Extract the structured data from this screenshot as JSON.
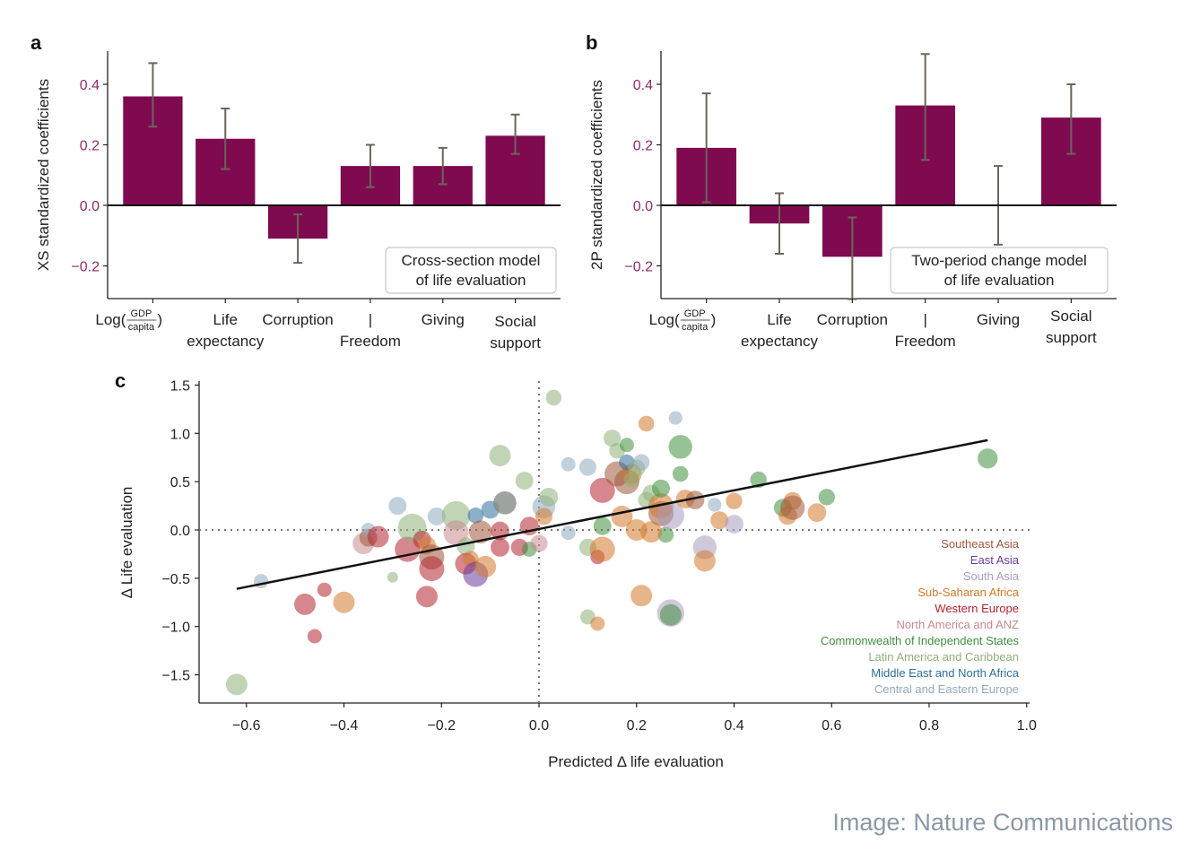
{
  "credit": "Image: Nature Communications",
  "chart_data": [
    {
      "panel": "a",
      "type": "bar",
      "ylabel": "XS standardized coefficients",
      "categories": [
        "Log(GDP/capita)",
        "Life expectancy",
        "Corruption",
        "Freedom",
        "Giving",
        "Social support"
      ],
      "category_label_lines": [
        [
          "Log(",
          "GDP",
          "capita",
          ")"
        ],
        [
          "Life",
          "expectancy"
        ],
        [
          "Corruption"
        ],
        [
          "|",
          "Freedom"
        ],
        [
          "Giving"
        ],
        [
          "Social",
          "support"
        ]
      ],
      "values": [
        0.36,
        0.22,
        -0.11,
        0.13,
        0.13,
        0.23
      ],
      "error_low": [
        0.26,
        0.12,
        -0.19,
        0.06,
        0.07,
        0.17
      ],
      "error_high": [
        0.47,
        0.32,
        -0.03,
        0.2,
        0.19,
        0.3
      ],
      "ylim": [
        -0.31,
        0.51
      ],
      "yticks": [
        -0.2,
        0.0,
        0.2,
        0.4
      ],
      "ytick_labels": [
        "−0.2",
        "0.0",
        "0.2",
        "0.4"
      ],
      "annotation": [
        "Cross-section model",
        "of life evaluation"
      ],
      "bar_color": "#7f0a4f",
      "tick_color": "#8e2a68",
      "errorbar_color": "#6b645c"
    },
    {
      "panel": "b",
      "type": "bar",
      "ylabel": "2P standardized coefficients",
      "categories": [
        "Log(GDP/capita)",
        "Life expectancy",
        "Corruption",
        "Freedom",
        "Giving",
        "Social support"
      ],
      "category_label_lines": [
        [
          "Log(",
          "GDP",
          "capita",
          ")"
        ],
        [
          "Life",
          "expectancy"
        ],
        [
          "Corruption"
        ],
        [
          "|",
          "Freedom"
        ],
        [
          "Giving"
        ],
        [
          "Social",
          "support"
        ]
      ],
      "values": [
        0.19,
        -0.06,
        -0.17,
        0.33,
        0.0,
        0.29
      ],
      "error_low": [
        0.01,
        -0.16,
        -0.31,
        0.15,
        -0.13,
        0.17
      ],
      "error_high": [
        0.37,
        0.04,
        -0.04,
        0.5,
        0.13,
        0.4
      ],
      "ylim": [
        -0.31,
        0.51
      ],
      "yticks": [
        -0.2,
        0.0,
        0.2,
        0.4
      ],
      "ytick_labels": [
        "−0.2",
        "0.0",
        "0.2",
        "0.4"
      ],
      "annotation": [
        "Two-period change model",
        "of life evaluation"
      ],
      "bar_color": "#7f0a4f",
      "tick_color": "#8e2a68",
      "errorbar_color": "#6b645c"
    },
    {
      "panel": "c",
      "type": "scatter",
      "xlabel": "Predicted Δ life evaluation",
      "ylabel": "Δ Life evaluation",
      "xlim": [
        -0.7,
        1.0
      ],
      "ylim": [
        -1.8,
        1.55
      ],
      "xticks": [
        -0.6,
        -0.4,
        -0.2,
        0.0,
        0.2,
        0.4,
        0.6,
        0.8,
        1.0
      ],
      "xtick_labels": [
        "−0.6",
        "−0.4",
        "−0.2",
        "0.0",
        "0.2",
        "0.4",
        "0.6",
        "0.8",
        "1.0"
      ],
      "yticks": [
        -1.5,
        -1.0,
        -0.5,
        0.0,
        0.5,
        1.0,
        1.5
      ],
      "ytick_labels": [
        "−1.5",
        "−1.0",
        "−0.5",
        "0.0",
        "0.5",
        "1.0",
        "1.5"
      ],
      "fit_line": {
        "x": [
          -0.62,
          0.92
        ],
        "y": [
          -0.61,
          0.93
        ]
      },
      "reference_lines": {
        "x": 0.0,
        "y": 0.0,
        "style": "dotted"
      },
      "legend_position": "bottom-right",
      "regions": [
        {
          "name": "Southeast Asia",
          "color": "#a0583a"
        },
        {
          "name": "East Asia",
          "color": "#6a3d9a"
        },
        {
          "name": "South Asia",
          "color": "#a99bbd"
        },
        {
          "name": "Sub-Saharan Africa",
          "color": "#d4782a"
        },
        {
          "name": "Western Europe",
          "color": "#b3242f"
        },
        {
          "name": "North America and ANZ",
          "color": "#c98a8f"
        },
        {
          "name": "Commonwealth of Independent States",
          "color": "#3f8f3f"
        },
        {
          "name": "Latin America and Caribbean",
          "color": "#8fb07a"
        },
        {
          "name": "Middle East and North Africa",
          "color": "#2f6f9f"
        },
        {
          "name": "Central and Eastern Europe",
          "color": "#8fa9c0"
        }
      ],
      "points": [
        {
          "x": -0.62,
          "y": -1.6,
          "s": 2,
          "r": 7
        },
        {
          "x": -0.57,
          "y": -0.53,
          "s": 1,
          "r": 9
        },
        {
          "x": -0.48,
          "y": -0.77,
          "s": 2,
          "r": 4
        },
        {
          "x": -0.46,
          "y": -1.1,
          "s": 1,
          "r": 4
        },
        {
          "x": -0.44,
          "y": -0.62,
          "s": 1,
          "r": 4
        },
        {
          "x": -0.4,
          "y": -0.75,
          "s": 2,
          "r": 3
        },
        {
          "x": -0.36,
          "y": -0.14,
          "s": 2,
          "r": 5
        },
        {
          "x": -0.35,
          "y": -0.08,
          "s": 1.5,
          "r": 0
        },
        {
          "x": -0.35,
          "y": 0.0,
          "s": 1,
          "r": 9
        },
        {
          "x": -0.33,
          "y": -0.07,
          "s": 2,
          "r": 4
        },
        {
          "x": -0.29,
          "y": 0.25,
          "s": 1.5,
          "r": 9
        },
        {
          "x": -0.3,
          "y": -0.49,
          "s": 0.5,
          "r": 7
        },
        {
          "x": -0.27,
          "y": -0.2,
          "s": 2.5,
          "r": 4
        },
        {
          "x": -0.26,
          "y": 0.02,
          "s": 3,
          "r": 7
        },
        {
          "x": -0.24,
          "y": -0.1,
          "s": 1.5,
          "r": 4
        },
        {
          "x": -0.23,
          "y": -0.16,
          "s": 1.5,
          "r": 3
        },
        {
          "x": -0.22,
          "y": -0.28,
          "s": 2.5,
          "r": 0
        },
        {
          "x": -0.22,
          "y": -0.4,
          "s": 2.5,
          "r": 4
        },
        {
          "x": -0.23,
          "y": -0.69,
          "s": 2,
          "r": 4
        },
        {
          "x": -0.21,
          "y": 0.14,
          "s": 1.5,
          "r": 9
        },
        {
          "x": -0.17,
          "y": 0.15,
          "s": 3,
          "r": 7
        },
        {
          "x": -0.17,
          "y": -0.03,
          "s": 2.5,
          "r": 5
        },
        {
          "x": -0.15,
          "y": -0.17,
          "s": 1.5,
          "r": 7
        },
        {
          "x": -0.15,
          "y": -0.35,
          "s": 2,
          "r": 4
        },
        {
          "x": -0.14,
          "y": -0.3,
          "s": 1.2,
          "r": 3
        },
        {
          "x": -0.13,
          "y": -0.46,
          "s": 2.5,
          "r": 1
        },
        {
          "x": -0.13,
          "y": 0.15,
          "s": 1.2,
          "r": 8
        },
        {
          "x": -0.12,
          "y": -0.02,
          "s": 2.2,
          "r": 0
        },
        {
          "x": -0.11,
          "y": -0.38,
          "s": 2,
          "r": 3
        },
        {
          "x": -0.1,
          "y": 0.21,
          "s": 1.5,
          "r": 8
        },
        {
          "x": -0.08,
          "y": 0.77,
          "s": 2,
          "r": 7
        },
        {
          "x": -0.08,
          "y": -0.01,
          "s": 1.6,
          "r": 4
        },
        {
          "x": -0.08,
          "y": -0.18,
          "s": 1.6,
          "r": 4
        },
        {
          "x": -0.07,
          "y": 0.28,
          "s": 2.2,
          "r": 1
        },
        {
          "x": -0.07,
          "y": 0.28,
          "s": 2.2,
          "r": 7
        },
        {
          "x": -0.04,
          "y": -0.18,
          "s": 1.4,
          "r": 4
        },
        {
          "x": -0.03,
          "y": 0.51,
          "s": 1.5,
          "r": 7
        },
        {
          "x": -0.02,
          "y": 0.04,
          "s": 1.6,
          "r": 4
        },
        {
          "x": -0.02,
          "y": -0.2,
          "s": 1.1,
          "r": 6
        },
        {
          "x": 0.0,
          "y": -0.14,
          "s": 1.4,
          "r": 5
        },
        {
          "x": 0.01,
          "y": 0.24,
          "s": 2.2,
          "r": 9
        },
        {
          "x": 0.01,
          "y": 0.14,
          "s": 1.4,
          "r": 3
        },
        {
          "x": 0.02,
          "y": 0.34,
          "s": 1.6,
          "r": 7
        },
        {
          "x": 0.03,
          "y": 1.37,
          "s": 1.2,
          "r": 7
        },
        {
          "x": 0.06,
          "y": -0.03,
          "s": 1.0,
          "r": 9
        },
        {
          "x": 0.06,
          "y": 0.68,
          "s": 1.0,
          "r": 9
        },
        {
          "x": 0.1,
          "y": 0.65,
          "s": 1.4,
          "r": 9
        },
        {
          "x": 0.1,
          "y": -0.18,
          "s": 1.4,
          "r": 7
        },
        {
          "x": 0.1,
          "y": -0.9,
          "s": 1.1,
          "r": 7
        },
        {
          "x": 0.12,
          "y": -0.97,
          "s": 1.0,
          "r": 3
        },
        {
          "x": 0.12,
          "y": -0.28,
          "s": 1.0,
          "r": 4
        },
        {
          "x": 0.13,
          "y": 0.41,
          "s": 2.5,
          "r": 4
        },
        {
          "x": 0.13,
          "y": 0.04,
          "s": 1.5,
          "r": 6
        },
        {
          "x": 0.13,
          "y": -0.2,
          "s": 2.5,
          "r": 3
        },
        {
          "x": 0.15,
          "y": 0.95,
          "s": 1.4,
          "r": 7
        },
        {
          "x": 0.16,
          "y": 0.82,
          "s": 1.2,
          "r": 7
        },
        {
          "x": 0.16,
          "y": 0.58,
          "s": 2.5,
          "r": 0
        },
        {
          "x": 0.17,
          "y": 0.14,
          "s": 2.0,
          "r": 3
        },
        {
          "x": 0.18,
          "y": 0.5,
          "s": 2.5,
          "r": 0
        },
        {
          "x": 0.19,
          "y": 0.58,
          "s": 1.8,
          "r": 3
        },
        {
          "x": 0.19,
          "y": 0.52,
          "s": 1.2,
          "r": 7
        },
        {
          "x": 0.18,
          "y": 0.7,
          "s": 1.2,
          "r": 8
        },
        {
          "x": 0.18,
          "y": 0.88,
          "s": 1.0,
          "r": 6
        },
        {
          "x": 0.2,
          "y": 0.64,
          "s": 1.4,
          "r": 7
        },
        {
          "x": 0.22,
          "y": 0.31,
          "s": 1.3,
          "r": 7
        },
        {
          "x": 0.22,
          "y": 1.1,
          "s": 1.2,
          "r": 3
        },
        {
          "x": 0.23,
          "y": 0.38,
          "s": 1.4,
          "r": 7
        },
        {
          "x": 0.25,
          "y": 0.17,
          "s": 2.5,
          "r": 0
        },
        {
          "x": 0.25,
          "y": 0.25,
          "s": 2.5,
          "r": 3
        },
        {
          "x": 0.25,
          "y": 0.43,
          "s": 1.5,
          "r": 6
        },
        {
          "x": 0.26,
          "y": -0.05,
          "s": 1.2,
          "r": 6
        },
        {
          "x": 0.21,
          "y": -0.68,
          "s": 2.0,
          "r": 3
        },
        {
          "x": 0.21,
          "y": 0.7,
          "s": 1.3,
          "r": 9
        },
        {
          "x": 0.2,
          "y": 0.0,
          "s": 2.0,
          "r": 3
        },
        {
          "x": 0.23,
          "y": -0.02,
          "s": 2.0,
          "r": 3
        },
        {
          "x": 0.27,
          "y": 0.15,
          "s": 2.8,
          "r": 2
        },
        {
          "x": 0.27,
          "y": -0.86,
          "s": 2.8,
          "r": 2
        },
        {
          "x": 0.27,
          "y": -0.88,
          "s": 2.0,
          "r": 6
        },
        {
          "x": 0.28,
          "y": 1.16,
          "s": 0.9,
          "r": 9
        },
        {
          "x": 0.29,
          "y": 0.86,
          "s": 2.3,
          "r": 6
        },
        {
          "x": 0.29,
          "y": 0.58,
          "s": 1.2,
          "r": 6
        },
        {
          "x": 0.3,
          "y": 0.32,
          "s": 1.6,
          "r": 3
        },
        {
          "x": 0.32,
          "y": 0.31,
          "s": 1.6,
          "r": 0
        },
        {
          "x": 0.34,
          "y": -0.18,
          "s": 2.3,
          "r": 2
        },
        {
          "x": 0.34,
          "y": -0.32,
          "s": 2.0,
          "r": 3
        },
        {
          "x": 0.36,
          "y": 0.26,
          "s": 0.9,
          "r": 9
        },
        {
          "x": 0.37,
          "y": 0.1,
          "s": 1.5,
          "r": 3
        },
        {
          "x": 0.4,
          "y": 0.3,
          "s": 1.3,
          "r": 3
        },
        {
          "x": 0.4,
          "y": 0.06,
          "s": 1.6,
          "r": 2
        },
        {
          "x": 0.45,
          "y": 0.52,
          "s": 1.3,
          "r": 6
        },
        {
          "x": 0.5,
          "y": 0.23,
          "s": 1.5,
          "r": 6
        },
        {
          "x": 0.51,
          "y": 0.15,
          "s": 1.6,
          "r": 3
        },
        {
          "x": 0.52,
          "y": 0.3,
          "s": 1.5,
          "r": 3
        },
        {
          "x": 0.52,
          "y": 0.23,
          "s": 2.4,
          "r": 0
        },
        {
          "x": 0.57,
          "y": 0.18,
          "s": 1.6,
          "r": 3
        },
        {
          "x": 0.59,
          "y": 0.34,
          "s": 1.3,
          "r": 6
        },
        {
          "x": 0.92,
          "y": 0.74,
          "s": 1.8,
          "r": 6
        }
      ]
    }
  ]
}
